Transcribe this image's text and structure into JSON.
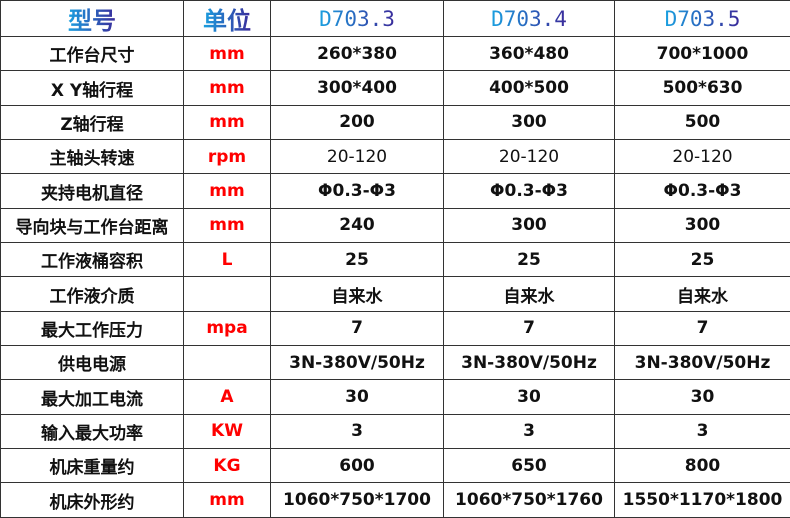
{
  "header": {
    "model": "型号",
    "unit": "单位",
    "models": [
      "D703.3",
      "D703.4",
      "D703.5"
    ]
  },
  "colors": {
    "unit_text": "#ff0000",
    "header_gradient_start": "#1aa0e0",
    "header_gradient_end": "#3a2a9a"
  },
  "rows": [
    {
      "param": "工作台尺寸",
      "unit": "mm",
      "values": [
        "260*380",
        "360*480",
        "700*1000"
      ]
    },
    {
      "param": "X Y轴行程",
      "unit": "mm",
      "values": [
        "300*400",
        "400*500",
        "500*630"
      ]
    },
    {
      "param": "Z轴行程",
      "unit": "mm",
      "values": [
        "200",
        "300",
        "500"
      ]
    },
    {
      "param": "主轴头转速",
      "unit": "rpm",
      "values": [
        "20-120",
        "20-120",
        "20-120"
      ]
    },
    {
      "param": "夹持电机直径",
      "unit": "mm",
      "values": [
        "Φ0.3-Φ3",
        "Φ0.3-Φ3",
        "Φ0.3-Φ3"
      ]
    },
    {
      "param": "导向块与工作台距离",
      "unit": "mm",
      "values": [
        "240",
        "300",
        "300"
      ]
    },
    {
      "param": "工作液桶容积",
      "unit": "L",
      "values": [
        "25",
        "25",
        "25"
      ]
    },
    {
      "param": "工作液介质",
      "unit": "",
      "values": [
        "自来水",
        "自来水",
        "自来水"
      ]
    },
    {
      "param": "最大工作压力",
      "unit": "mpa",
      "values": [
        "7",
        "7",
        "7"
      ]
    },
    {
      "param": "供电电源",
      "unit": "",
      "values": [
        "3N-380V/50Hz",
        "3N-380V/50Hz",
        "3N-380V/50Hz"
      ]
    },
    {
      "param": "最大加工电流",
      "unit": "A",
      "values": [
        "30",
        "30",
        "30"
      ]
    },
    {
      "param": "输入最大功率",
      "unit": "KW",
      "values": [
        "3",
        "3",
        "3"
      ]
    },
    {
      "param": "机床重量约",
      "unit": "KG",
      "values": [
        "600",
        "650",
        "800"
      ]
    },
    {
      "param": "机床外形约",
      "unit": "mm",
      "values": [
        "1060*750*1700",
        "1060*750*1760",
        "1550*1170*1800"
      ]
    }
  ]
}
